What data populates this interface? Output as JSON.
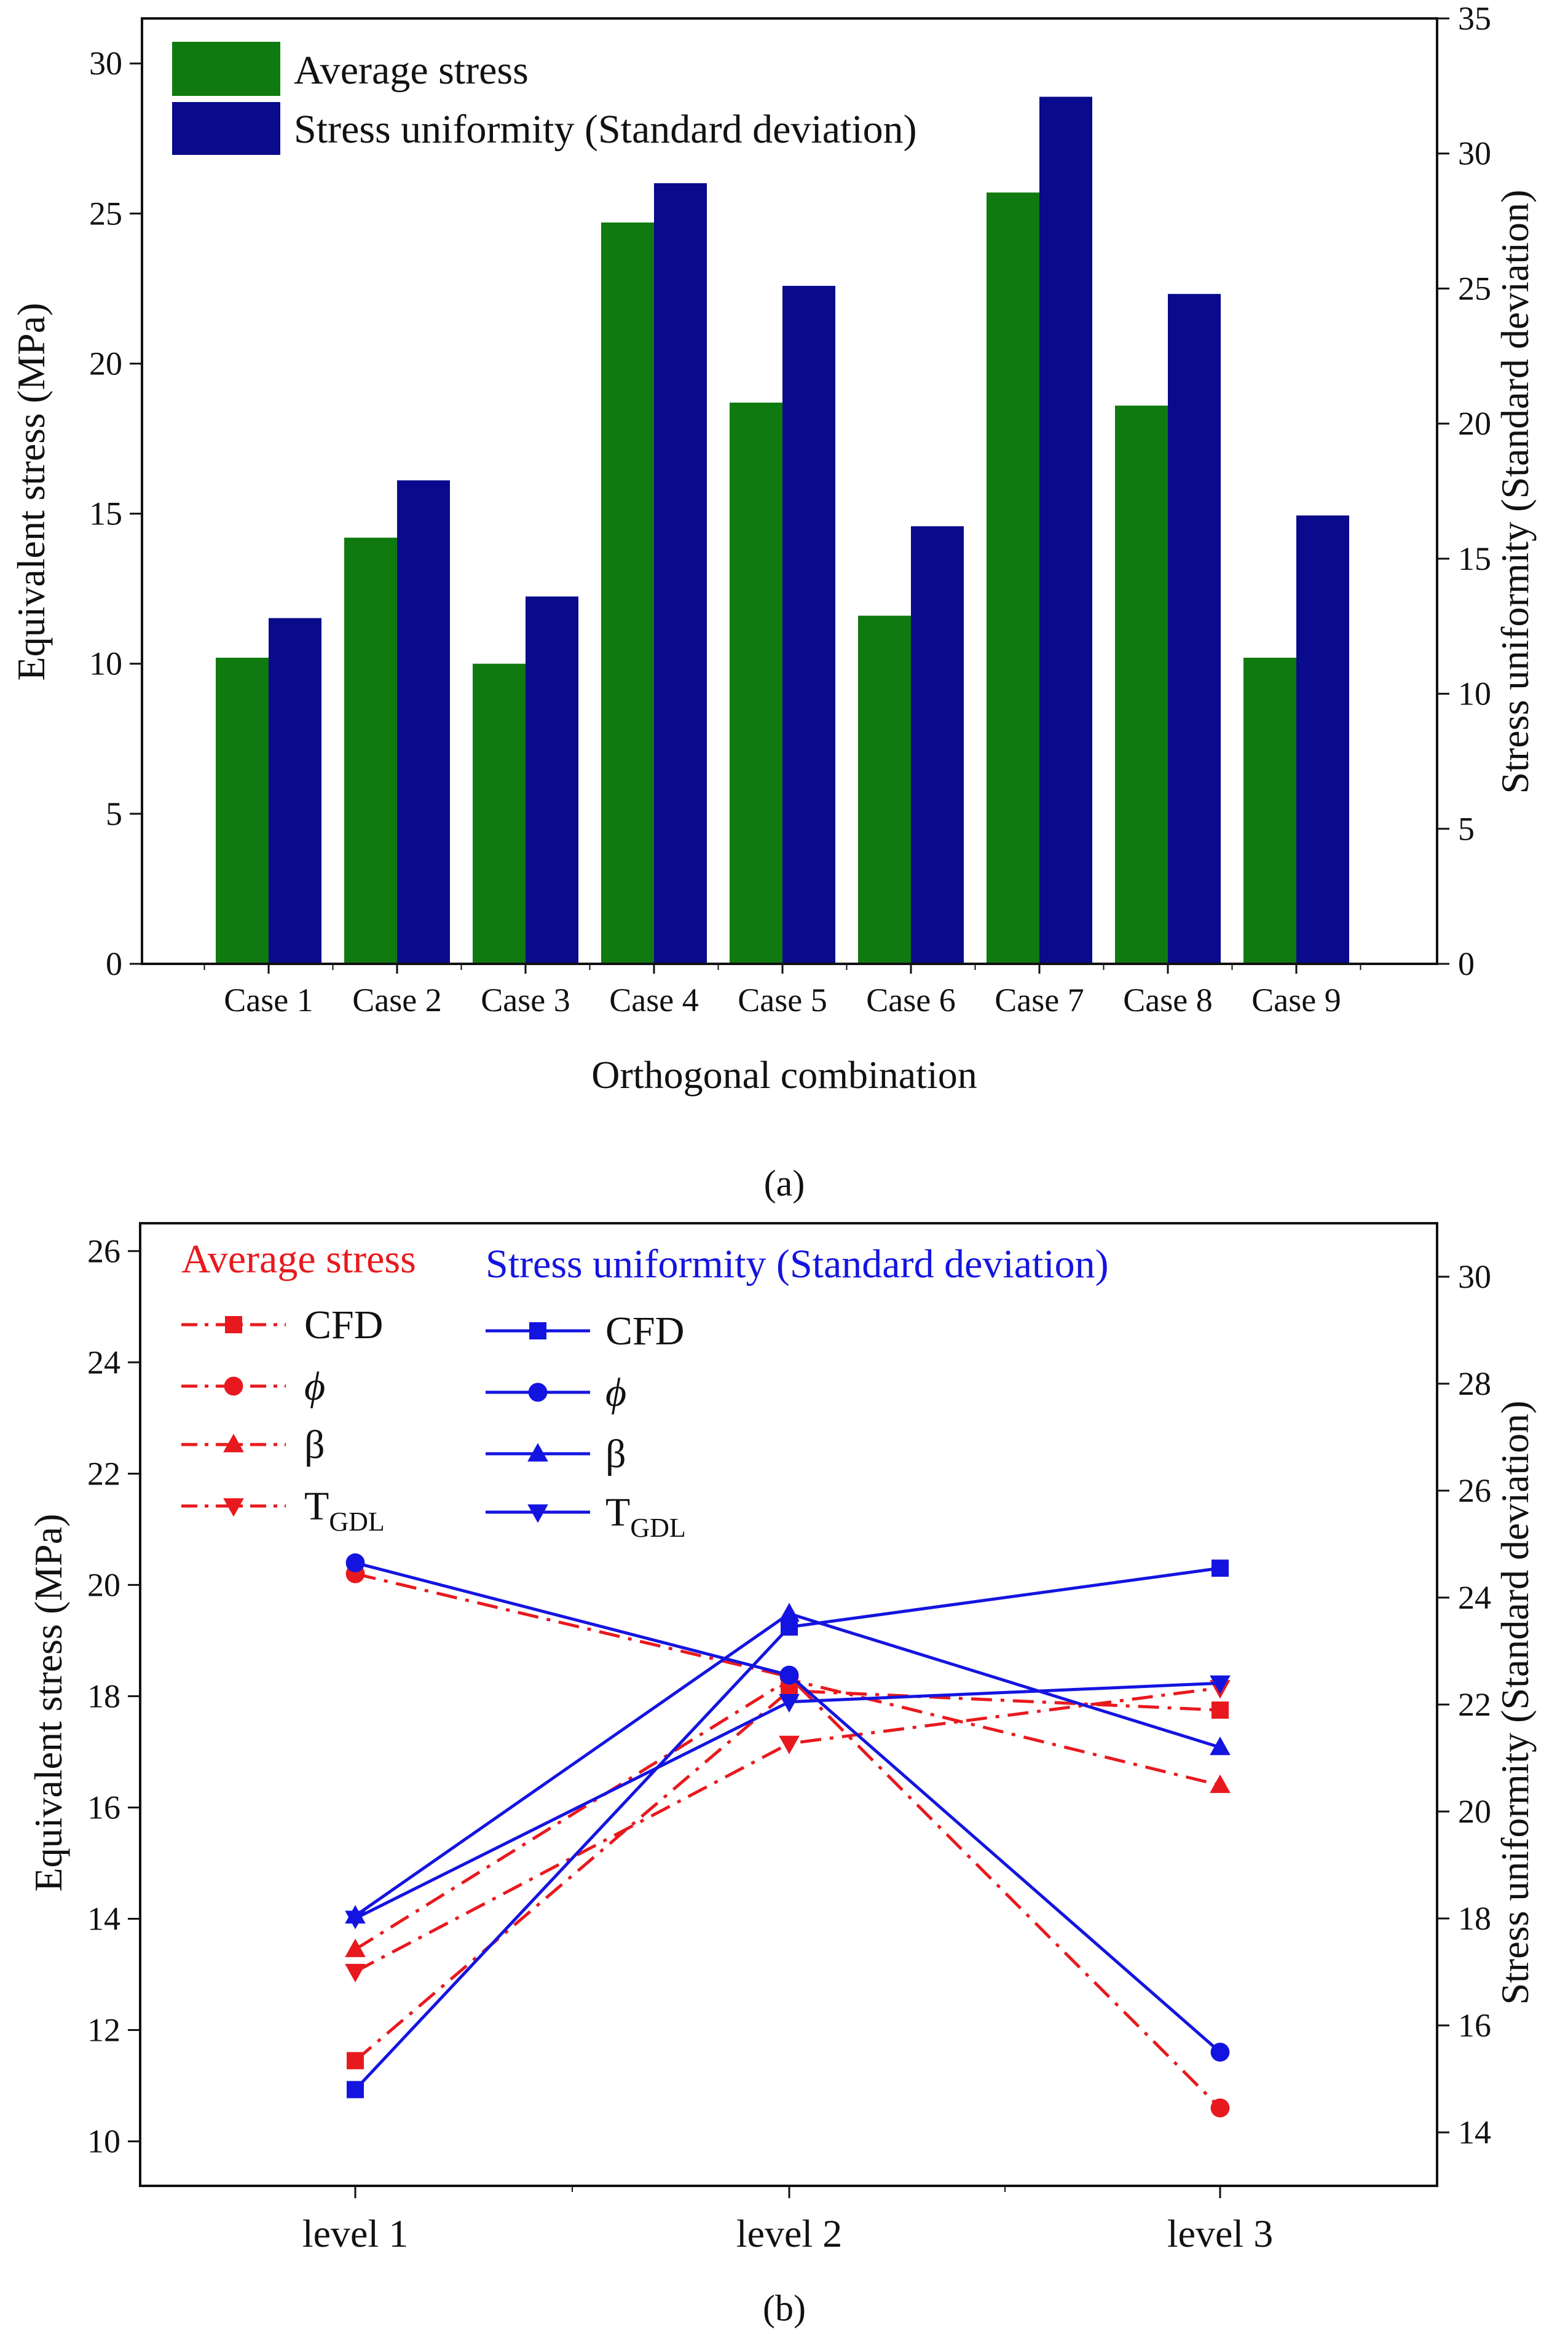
{
  "figure": {
    "panels": [
      {
        "label": "(a)"
      },
      {
        "label": "(b)"
      }
    ]
  },
  "chart_data": [
    {
      "type": "bar",
      "title": "",
      "categories": [
        "Case 1",
        "Case 2",
        "Case 3",
        "Case 4",
        "Case 5",
        "Case 6",
        "Case 7",
        "Case 8",
        "Case 9"
      ],
      "xlabel": "Orthogonal combination",
      "ylabel": "Equivalent stress (MPa)",
      "y2label": "Stress uniformity (Standard deviation)",
      "ylim": [
        0,
        31.5
      ],
      "y2lim": [
        0,
        35
      ],
      "yticks": [
        0,
        5,
        10,
        15,
        20,
        25,
        30
      ],
      "y2ticks": [
        0,
        5,
        10,
        15,
        20,
        25,
        30,
        35
      ],
      "legend_position": "top-left",
      "series": [
        {
          "name": "Average stress",
          "axis": "left",
          "color": "#0f7a0f",
          "values": [
            10.2,
            14.2,
            10.0,
            24.7,
            18.7,
            11.6,
            25.7,
            18.6,
            10.2
          ]
        },
        {
          "name": "Stress uniformity (Standard deviation)",
          "axis": "right",
          "color": "#0a0a8c",
          "values": [
            12.8,
            17.9,
            13.6,
            28.9,
            25.1,
            16.2,
            32.1,
            24.8,
            16.6
          ]
        }
      ]
    },
    {
      "type": "line",
      "title": "",
      "categories": [
        "level 1",
        "level 2",
        "level 3"
      ],
      "xlabel": "",
      "ylabel": "Equivalent stress (MPa)",
      "y2label": "Stress uniformity (Standard deviation)",
      "ylim": [
        9.2,
        26.5
      ],
      "y2lim": [
        13,
        31
      ],
      "yticks": [
        10,
        12,
        14,
        16,
        18,
        20,
        22,
        24,
        26
      ],
      "y2ticks": [
        14,
        16,
        18,
        20,
        22,
        24,
        26,
        28,
        30
      ],
      "legend_position": "top",
      "legend_groups": [
        {
          "title": "Average stress",
          "color": "#e8191e",
          "line": "dash-dot"
        },
        {
          "title": "Stress uniformity (Standard deviation)",
          "color": "#1414e0",
          "line": "solid"
        }
      ],
      "series": [
        {
          "group": "Average stress",
          "name": "CFD",
          "axis": "left",
          "marker": "square",
          "color": "#e8191e",
          "dash": "dash-dot",
          "values": [
            11.45,
            18.1,
            17.75
          ]
        },
        {
          "group": "Average stress",
          "name": "ϕ",
          "axis": "left",
          "marker": "circle",
          "color": "#e8191e",
          "dash": "dash-dot",
          "values": [
            20.2,
            18.35,
            10.6
          ]
        },
        {
          "group": "Average stress",
          "name": "β",
          "axis": "left",
          "marker": "triangle-up",
          "color": "#e8191e",
          "dash": "dash-dot",
          "values": [
            13.45,
            18.3,
            16.4
          ]
        },
        {
          "group": "Average stress",
          "name": "TGDL",
          "axis": "left",
          "marker": "triangle-down",
          "color": "#e8191e",
          "dash": "dash-dot",
          "values": [
            13.05,
            17.15,
            18.15
          ]
        },
        {
          "group": "Stress uniformity (Standard deviation)",
          "name": "CFD",
          "axis": "right",
          "marker": "square",
          "color": "#1414e0",
          "dash": "solid",
          "values": [
            14.8,
            23.45,
            24.55
          ]
        },
        {
          "group": "Stress uniformity (Standard deviation)",
          "name": "ϕ",
          "axis": "right",
          "marker": "circle",
          "color": "#1414e0",
          "dash": "solid",
          "values": [
            24.65,
            22.55,
            15.5
          ]
        },
        {
          "group": "Stress uniformity (Standard deviation)",
          "name": "β",
          "axis": "right",
          "marker": "triangle-up",
          "color": "#1414e0",
          "dash": "solid",
          "values": [
            18.05,
            23.7,
            21.2
          ]
        },
        {
          "group": "Stress uniformity (Standard deviation)",
          "name": "TGDL",
          "axis": "right",
          "marker": "triangle-down",
          "color": "#1414e0",
          "dash": "solid",
          "values": [
            18.0,
            22.05,
            22.4
          ]
        }
      ]
    }
  ]
}
